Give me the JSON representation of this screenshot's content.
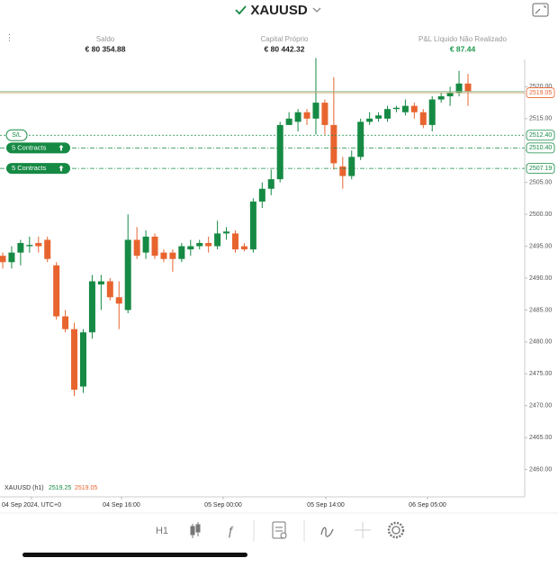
{
  "header": {
    "symbol": "XAUUSD"
  },
  "account": [
    {
      "label": "Saldo",
      "value": "€ 80 354.88"
    },
    {
      "label": "Capital Próprio",
      "value": "€ 80 442.32"
    },
    {
      "label": "P&L Líquido Não Realizado",
      "value": "€ 87.44"
    }
  ],
  "chart_data": {
    "type": "candlestick",
    "legend": {
      "symbol": "XAUUSD (h1)",
      "bid": "2519.25",
      "ask": "2519.05"
    },
    "x_labels": [
      "04 Sep 2024, UTC+0",
      "04 Sep 16:00",
      "05 Sep 00:00",
      "05 Sep 14:00",
      "06 Sep 05:00"
    ],
    "ylim": [
      2456,
      2524
    ],
    "yticks": [
      {
        "value": 2460,
        "label": "2460.00"
      },
      {
        "value": 2465,
        "label": "2465.00"
      },
      {
        "value": 2470,
        "label": "2470.00"
      },
      {
        "value": 2475,
        "label": "2475.00"
      },
      {
        "value": 2480,
        "label": "2480.00"
      },
      {
        "value": 2485,
        "label": "2485.00"
      },
      {
        "value": 2490,
        "label": "2490.00"
      },
      {
        "value": 2495,
        "label": "2495.00"
      },
      {
        "value": 2500,
        "label": "2500.00"
      },
      {
        "value": 2505,
        "label": "2505.00"
      },
      {
        "value": 2510,
        "label": "2510.00"
      },
      {
        "value": 2515,
        "label": "2515.00"
      },
      {
        "value": 2520,
        "label": "2520.00"
      }
    ],
    "colors": {
      "up": "#168a44",
      "down": "#e8642f"
    },
    "candles": {
      "open": [
        2493.5,
        2492.5,
        2494,
        2495,
        2495.5,
        2496,
        2492,
        2484,
        2482,
        2473,
        2481.5,
        2489,
        2489.5,
        2487,
        2485,
        2496,
        2494,
        2496.5,
        2494,
        2494,
        2493,
        2494.5,
        2495,
        2495.5,
        2495,
        2497,
        2497,
        2495,
        2494.5,
        2502,
        2504,
        2505.5,
        2514,
        2514.5,
        2516,
        2515,
        2517.5,
        2514,
        2507.5,
        2506,
        2509,
        2514.5,
        2515,
        2515,
        2516.5,
        2516,
        2517,
        2516,
        2514,
        2518,
        2518.5,
        2519,
        2520.5
      ],
      "close": [
        2492.5,
        2494,
        2495.5,
        2495.2,
        2495,
        2493,
        2484,
        2482,
        2472.5,
        2481.5,
        2489.5,
        2489.5,
        2487,
        2486,
        2496,
        2493.5,
        2496.5,
        2493.5,
        2493,
        2493,
        2495,
        2495,
        2495.5,
        2495,
        2497,
        2497.3,
        2494.5,
        2494.5,
        2502,
        2504,
        2505.5,
        2514,
        2515,
        2516,
        2515,
        2517.5,
        2514,
        2508,
        2506,
        2509,
        2514.5,
        2515,
        2515.5,
        2516.5,
        2516.7,
        2517,
        2516,
        2514,
        2518,
        2518.5,
        2519,
        2520.5,
        2519.25
      ],
      "high": [
        2494,
        2495,
        2496,
        2496.5,
        2496.5,
        2496.5,
        2492.5,
        2485,
        2483,
        2482,
        2490.5,
        2490.5,
        2490,
        2489.5,
        2500,
        2498,
        2497.5,
        2497,
        2494.5,
        2494.5,
        2495.5,
        2496,
        2496,
        2496.5,
        2499,
        2498,
        2497.5,
        2495.5,
        2502.5,
        2505,
        2507,
        2514.5,
        2516,
        2516.5,
        2516.5,
        2524.5,
        2518,
        2521.5,
        2509,
        2510,
        2515,
        2516,
        2516,
        2517,
        2517,
        2518,
        2517.5,
        2516.5,
        2518.5,
        2519,
        2520,
        2522.5,
        2522
      ],
      "low": [
        2491.5,
        2491.5,
        2492,
        2494,
        2494,
        2492.5,
        2483.5,
        2481.5,
        2471.5,
        2472,
        2480.5,
        2485,
        2486.5,
        2482,
        2484.5,
        2493,
        2493,
        2493,
        2492.5,
        2491,
        2492.5,
        2493.5,
        2494.5,
        2494,
        2494.5,
        2496,
        2494,
        2494.2,
        2494,
        2501,
        2503,
        2505,
        2514,
        2513,
        2514,
        2512.5,
        2512.5,
        2507,
        2504,
        2505.5,
        2508.5,
        2514,
        2514.5,
        2514.5,
        2516,
        2515.5,
        2515,
        2513.5,
        2513,
        2517.5,
        2517,
        2518.5,
        2517
      ]
    },
    "levels": [
      {
        "name": "S/L",
        "value": 2512.4,
        "label": "2512.40"
      },
      {
        "name": "5 Contracts",
        "value": 2510.4,
        "label": "2510.40"
      },
      {
        "name": "5 Contracts",
        "value": 2507.19,
        "label": "2507.19"
      }
    ],
    "price": {
      "value": 2519.05,
      "label": "2519.05"
    },
    "bid_price": 2519.25
  },
  "toolbar": {
    "timeframe": "H1"
  }
}
